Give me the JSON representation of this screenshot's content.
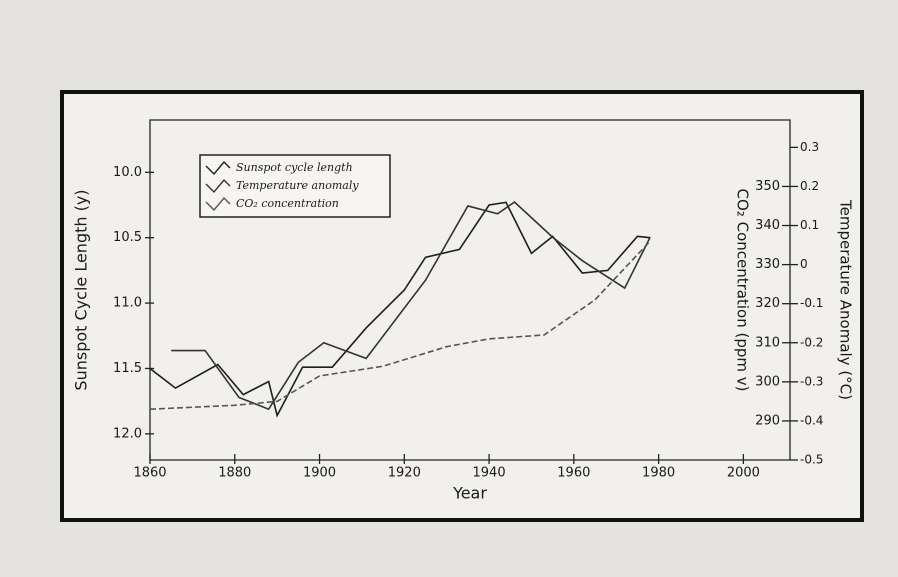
{
  "chart_data": {
    "type": "line",
    "xlabel": "Year",
    "ylabel": "Sunspot Cycle Length (y)",
    "y2label": "CO₂ Concentration (ppm v)",
    "y3label": "Temperature Anomaly (°C)",
    "xlim": [
      1860,
      2011
    ],
    "xticks": [
      1860,
      1880,
      1900,
      1920,
      1940,
      1960,
      1980,
      2000
    ],
    "ylim": [
      12.2,
      9.6
    ],
    "yticks": [
      {
        "value": 10,
        "label": "10.0"
      },
      10.5,
      {
        "value": 11,
        "label": "11.0"
      },
      11.5,
      {
        "value": 12,
        "label": "12.0"
      }
    ],
    "y2lim": [
      280,
      367
    ],
    "y2ticks": [
      290,
      300,
      310,
      320,
      330,
      340,
      350
    ],
    "y3lim": [
      -0.5,
      0.37
    ],
    "y3ticks": [
      -0.5,
      -0.4,
      -0.3,
      -0.2,
      -0.1,
      0,
      0.1,
      0.2,
      0.3
    ],
    "series": [
      {
        "name": "Sunspot cycle length",
        "color": "#1e1e1e",
        "dash": "none",
        "x": [
          1860,
          1866,
          1876,
          1882,
          1888,
          1890,
          1896,
          1903,
          1911,
          1920,
          1925,
          1933,
          1940,
          1944,
          1950,
          1955,
          1962,
          1968,
          1975,
          1978
        ],
        "values": [
          11.5,
          11.65,
          11.47,
          11.7,
          11.6,
          11.86,
          11.49,
          11.49,
          11.19,
          10.9,
          10.65,
          10.59,
          10.25,
          10.23,
          10.62,
          10.49,
          10.77,
          10.75,
          10.49,
          10.5
        ]
      },
      {
        "name": "Temperature anomaly",
        "color": "#333333",
        "dash": "none",
        "axis": "y3",
        "x": [
          1865,
          1873,
          1881,
          1888,
          1895,
          1901,
          1911,
          1925,
          1935,
          1942,
          1946,
          1955,
          1962,
          1972,
          1978
        ],
        "values": [
          -0.22,
          -0.22,
          -0.34,
          -0.37,
          -0.25,
          -0.2,
          -0.24,
          -0.04,
          0.15,
          0.13,
          0.16,
          0.07,
          0.01,
          -0.06,
          0.07
        ]
      },
      {
        "name": "CO₂ concentration",
        "color": "#555555",
        "dash": "6 3",
        "axis": "y2",
        "x": [
          1860,
          1880,
          1890,
          1900,
          1915,
          1930,
          1940,
          1953,
          1965,
          1978
        ],
        "values": [
          293,
          294,
          295,
          301.5,
          304,
          309,
          311,
          312,
          321,
          336
        ]
      }
    ]
  }
}
